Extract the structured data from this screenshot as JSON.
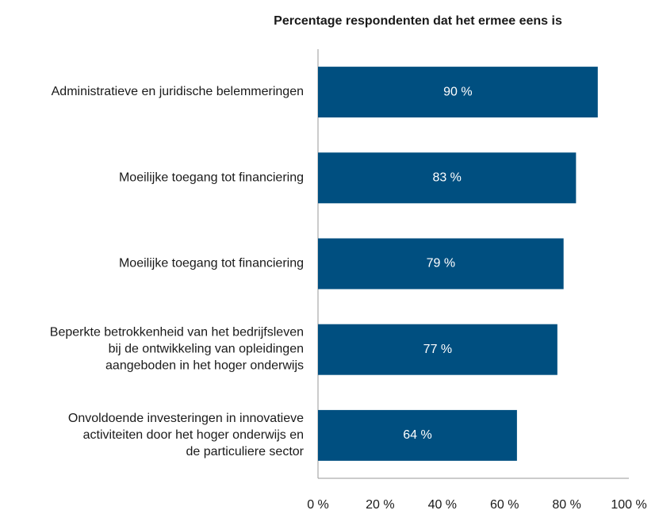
{
  "chart_data": {
    "type": "bar",
    "orientation": "horizontal",
    "title": "Percentage respondenten dat het ermee eens is",
    "categories": [
      "Administratieve en juridische belemmeringen",
      "Moeilijke toegang tot financiering",
      "Moeilijke toegang tot financiering",
      "Beperkte betrokkenheid van het bedrijfsleven\nbij de ontwikkeling van opleidingen\naangeboden in het hoger onderwijs",
      "Onvoldoende investeringen in innovatieve\nactiviteiten door het hoger onderwijs en\nde particuliere sector"
    ],
    "values": [
      90,
      83,
      79,
      77,
      64
    ],
    "value_labels": [
      "90 %",
      "83 %",
      "79 %",
      "77 %",
      "64 %"
    ],
    "color": "#004f80",
    "xlim": [
      0,
      100
    ],
    "xticks": [
      {
        "value": 0,
        "label": "0 %"
      },
      {
        "value": 20,
        "label": "20 %"
      },
      {
        "value": 40,
        "label": "40 %"
      },
      {
        "value": 60,
        "label": "60 %"
      },
      {
        "value": 80,
        "label": "80 %"
      },
      {
        "value": 100,
        "label": "100 %"
      }
    ],
    "grid": false
  }
}
